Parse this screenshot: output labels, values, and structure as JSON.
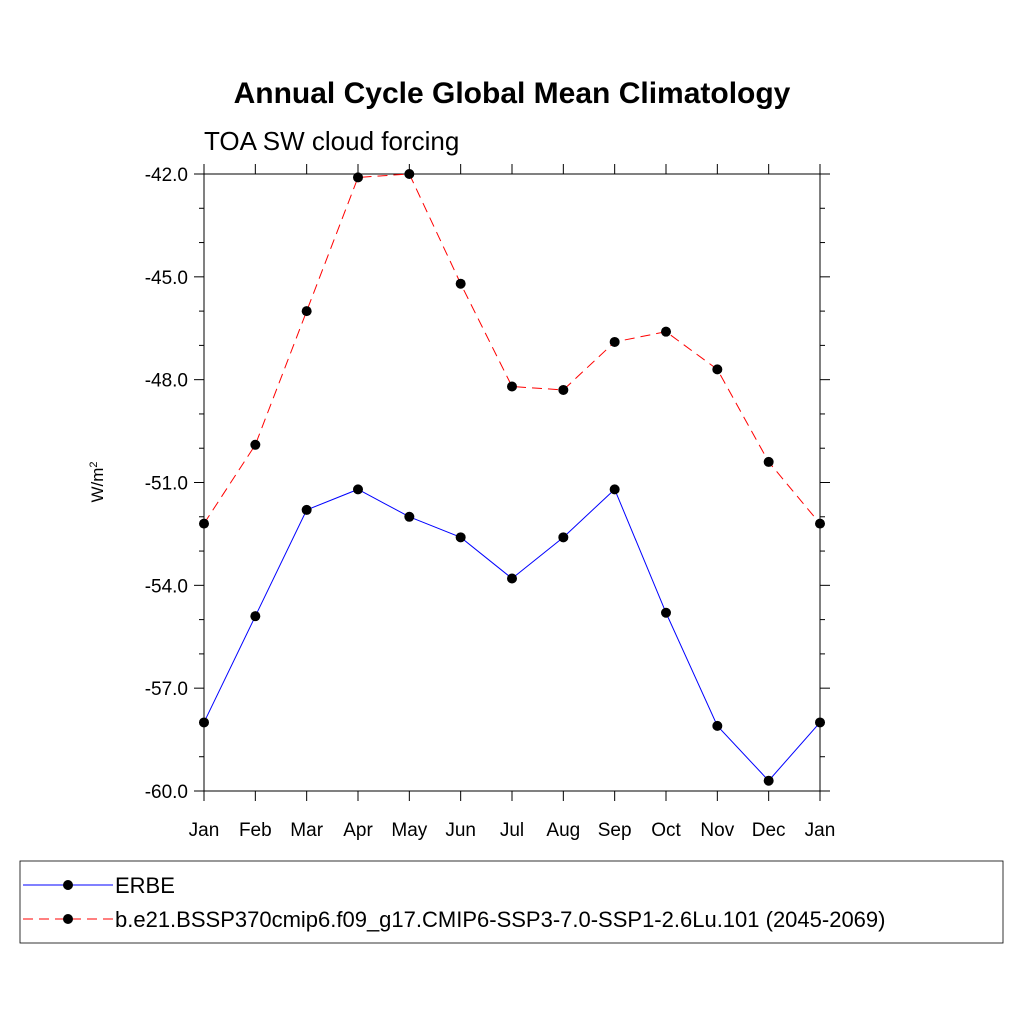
{
  "chart_data": {
    "type": "line",
    "title": "Annual Cycle Global Mean Climatology",
    "subtitle": "TOA SW cloud forcing",
    "ylabel_base": "W/m",
    "ylabel_sup": "2",
    "xlabel": "",
    "categories": [
      "Jan",
      "Feb",
      "Mar",
      "Apr",
      "May",
      "Jun",
      "Jul",
      "Aug",
      "Sep",
      "Oct",
      "Nov",
      "Dec",
      "Jan"
    ],
    "ylim": [
      -60.0,
      -42.0
    ],
    "yticks": [
      -42.0,
      -45.0,
      -48.0,
      -51.0,
      -54.0,
      -57.0,
      -60.0
    ],
    "ytick_labels": [
      "-42.0",
      "-45.0",
      "-48.0",
      "-51.0",
      "-54.0",
      "-57.0",
      "-60.0"
    ],
    "grid": false,
    "legend_position": "bottom",
    "series": [
      {
        "name": "ERBE",
        "color": "#0000ff",
        "style": "solid",
        "values": [
          -58.0,
          -54.9,
          -51.8,
          -51.2,
          -52.0,
          -52.6,
          -53.8,
          -52.6,
          -51.2,
          -54.8,
          -58.1,
          -59.7,
          -58.0
        ]
      },
      {
        "name": "b.e21.BSSP370cmip6.f09_g17.CMIP6-SSP3-7.0-SSP1-2.6Lu.101 (2045-2069)",
        "color": "#ff0000",
        "style": "dashed",
        "values": [
          -52.2,
          -49.9,
          -46.0,
          -42.1,
          -42.0,
          -45.2,
          -48.2,
          -48.3,
          -46.9,
          -46.6,
          -47.7,
          -50.4,
          -52.2
        ]
      }
    ]
  }
}
